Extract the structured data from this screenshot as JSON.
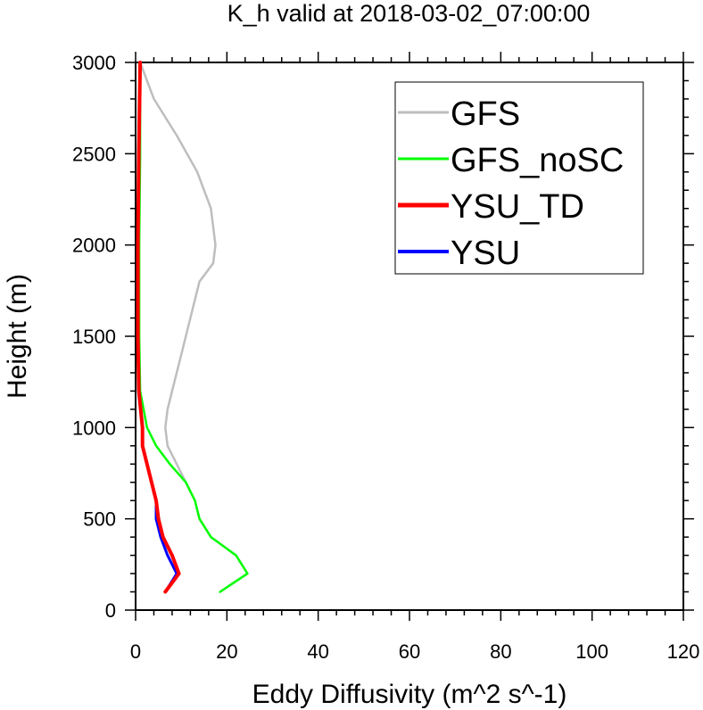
{
  "chart_data": {
    "type": "line",
    "title": "K_h valid at 2018-03-02_07:00:00",
    "xlabel": "Eddy Diffusivity (m^2 s^-1)",
    "ylabel": "Height (m)",
    "xlim": [
      0,
      120
    ],
    "ylim": [
      0,
      3000
    ],
    "xticks": [
      "0",
      "20",
      "40",
      "60",
      "80",
      "100",
      "120"
    ],
    "yticks": [
      "0",
      "500",
      "1000",
      "1500",
      "2000",
      "2500",
      "3000"
    ],
    "grid": false,
    "legend_position": "top-right",
    "series": [
      {
        "name": "GFS",
        "color": "#bebebe",
        "points": [
          [
            18.5,
            100
          ],
          [
            24.5,
            200
          ],
          [
            22,
            300
          ],
          [
            16.5,
            400
          ],
          [
            14,
            500
          ],
          [
            13,
            600
          ],
          [
            11,
            700
          ],
          [
            9,
            800
          ],
          [
            7,
            900
          ],
          [
            6.5,
            1000
          ],
          [
            7,
            1100
          ],
          [
            8,
            1200
          ],
          [
            10,
            1400
          ],
          [
            12,
            1600
          ],
          [
            14,
            1800
          ],
          [
            17,
            1900
          ],
          [
            17.5,
            2000
          ],
          [
            16.5,
            2200
          ],
          [
            13.5,
            2400
          ],
          [
            9,
            2600
          ],
          [
            4,
            2800
          ],
          [
            1,
            3000
          ]
        ]
      },
      {
        "name": "GFS_noSC",
        "color": "#00ff00",
        "points": [
          [
            18.5,
            100
          ],
          [
            24.5,
            200
          ],
          [
            22,
            300
          ],
          [
            16.5,
            400
          ],
          [
            14,
            500
          ],
          [
            13,
            600
          ],
          [
            11,
            700
          ],
          [
            7.5,
            800
          ],
          [
            4.5,
            900
          ],
          [
            2.5,
            1000
          ],
          [
            1,
            1200
          ],
          [
            0.8,
            1500
          ],
          [
            0.8,
            2000
          ],
          [
            1,
            2500
          ],
          [
            1,
            3000
          ]
        ]
      },
      {
        "name": "YSU_TD",
        "color": "#ff0000",
        "points": [
          [
            6.5,
            100
          ],
          [
            9.5,
            200
          ],
          [
            8,
            300
          ],
          [
            6,
            400
          ],
          [
            5,
            500
          ],
          [
            4.5,
            600
          ],
          [
            3.5,
            700
          ],
          [
            2.5,
            800
          ],
          [
            1.5,
            900
          ],
          [
            1.5,
            1000
          ],
          [
            0.7,
            1200
          ],
          [
            0.5,
            1500
          ],
          [
            0.5,
            2000
          ],
          [
            0.7,
            2500
          ],
          [
            1,
            3000
          ]
        ]
      },
      {
        "name": "YSU",
        "color": "#0000ff",
        "points": [
          [
            6.5,
            100
          ],
          [
            9,
            200
          ],
          [
            7,
            300
          ],
          [
            5.5,
            400
          ],
          [
            4.5,
            500
          ],
          [
            4.5,
            600
          ],
          [
            3.5,
            700
          ],
          [
            2.5,
            800
          ],
          [
            1.5,
            900
          ],
          [
            1.5,
            1000
          ],
          [
            0.7,
            1200
          ],
          [
            0.5,
            1500
          ],
          [
            0.5,
            2000
          ],
          [
            0.7,
            2500
          ],
          [
            1,
            3000
          ]
        ]
      }
    ]
  }
}
